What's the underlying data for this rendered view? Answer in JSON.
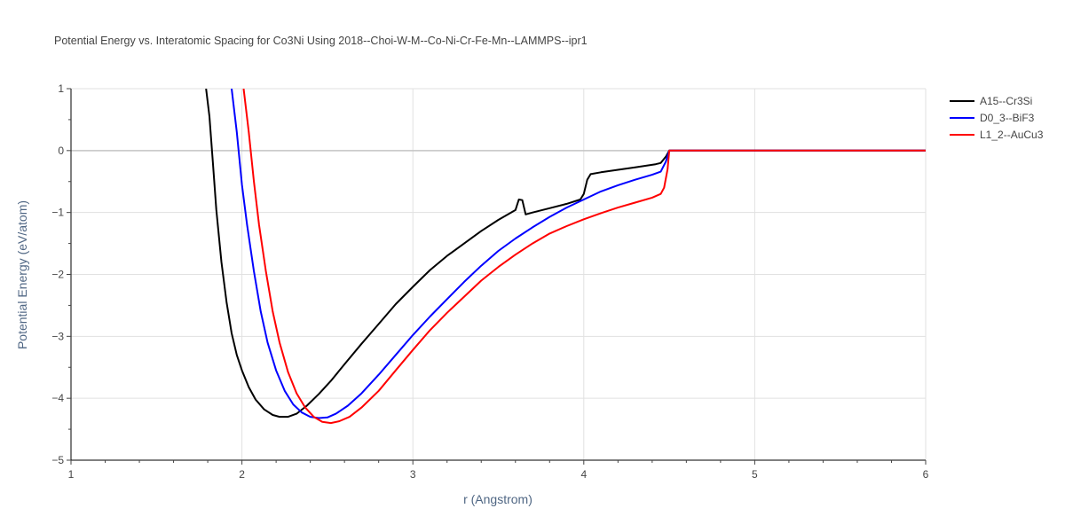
{
  "chart_data": {
    "type": "line",
    "title": "Potential Energy vs. Interatomic Spacing for Co3Ni Using 2018--Choi-W-M--Co-Ni-Cr-Fe-Mn--LAMMPS--ipr1",
    "xlabel": "r (Angstrom)",
    "ylabel": "Potential Energy (eV/atom)",
    "xlim": [
      1,
      6
    ],
    "ylim": [
      -5,
      1
    ],
    "xticks": [
      1,
      2,
      3,
      4,
      5,
      6
    ],
    "yticks": [
      1,
      0,
      -1,
      -2,
      -3,
      -4,
      -5
    ],
    "ytick_labels": [
      "1",
      "0",
      "−1",
      "−2",
      "−3",
      "−4",
      "−5"
    ],
    "grid": true,
    "legend_position": "top-right",
    "series": [
      {
        "name": "A15--Cr3Si",
        "color": "#000000",
        "points": [
          [
            1.79,
            1.0
          ],
          [
            1.81,
            0.55
          ],
          [
            1.83,
            -0.2
          ],
          [
            1.85,
            -0.95
          ],
          [
            1.88,
            -1.8
          ],
          [
            1.91,
            -2.45
          ],
          [
            1.94,
            -2.95
          ],
          [
            1.97,
            -3.3
          ],
          [
            2.0,
            -3.55
          ],
          [
            2.04,
            -3.82
          ],
          [
            2.08,
            -4.02
          ],
          [
            2.13,
            -4.18
          ],
          [
            2.18,
            -4.27
          ],
          [
            2.22,
            -4.3
          ],
          [
            2.27,
            -4.3
          ],
          [
            2.32,
            -4.25
          ],
          [
            2.38,
            -4.12
          ],
          [
            2.45,
            -3.93
          ],
          [
            2.52,
            -3.72
          ],
          [
            2.6,
            -3.45
          ],
          [
            2.7,
            -3.12
          ],
          [
            2.8,
            -2.8
          ],
          [
            2.9,
            -2.48
          ],
          [
            3.0,
            -2.2
          ],
          [
            3.1,
            -1.93
          ],
          [
            3.2,
            -1.7
          ],
          [
            3.3,
            -1.5
          ],
          [
            3.4,
            -1.3
          ],
          [
            3.5,
            -1.12
          ],
          [
            3.6,
            -0.96
          ],
          [
            3.62,
            -0.79
          ],
          [
            3.64,
            -0.8
          ],
          [
            3.66,
            -1.03
          ],
          [
            3.7,
            -1.0
          ],
          [
            3.8,
            -0.93
          ],
          [
            3.9,
            -0.86
          ],
          [
            3.98,
            -0.79
          ],
          [
            4.0,
            -0.7
          ],
          [
            4.02,
            -0.47
          ],
          [
            4.04,
            -0.38
          ],
          [
            4.1,
            -0.35
          ],
          [
            4.2,
            -0.31
          ],
          [
            4.3,
            -0.27
          ],
          [
            4.42,
            -0.22
          ],
          [
            4.45,
            -0.2
          ],
          [
            4.48,
            -0.1
          ],
          [
            4.5,
            0.0
          ],
          [
            6.0,
            0.0
          ]
        ]
      },
      {
        "name": "D0_3--BiF3",
        "color": "#0000ff",
        "points": [
          [
            1.94,
            1.0
          ],
          [
            1.97,
            0.3
          ],
          [
            2.0,
            -0.55
          ],
          [
            2.03,
            -1.2
          ],
          [
            2.07,
            -1.95
          ],
          [
            2.11,
            -2.6
          ],
          [
            2.15,
            -3.1
          ],
          [
            2.2,
            -3.55
          ],
          [
            2.25,
            -3.88
          ],
          [
            2.3,
            -4.1
          ],
          [
            2.35,
            -4.23
          ],
          [
            2.4,
            -4.3
          ],
          [
            2.45,
            -4.32
          ],
          [
            2.5,
            -4.31
          ],
          [
            2.55,
            -4.25
          ],
          [
            2.62,
            -4.12
          ],
          [
            2.7,
            -3.92
          ],
          [
            2.8,
            -3.62
          ],
          [
            2.9,
            -3.3
          ],
          [
            3.0,
            -2.98
          ],
          [
            3.1,
            -2.68
          ],
          [
            3.2,
            -2.4
          ],
          [
            3.3,
            -2.12
          ],
          [
            3.4,
            -1.86
          ],
          [
            3.5,
            -1.62
          ],
          [
            3.6,
            -1.42
          ],
          [
            3.7,
            -1.24
          ],
          [
            3.8,
            -1.07
          ],
          [
            3.9,
            -0.92
          ],
          [
            4.0,
            -0.79
          ],
          [
            4.1,
            -0.66
          ],
          [
            4.2,
            -0.56
          ],
          [
            4.3,
            -0.47
          ],
          [
            4.4,
            -0.39
          ],
          [
            4.45,
            -0.34
          ],
          [
            4.48,
            -0.18
          ],
          [
            4.5,
            0.0
          ],
          [
            6.0,
            0.0
          ]
        ]
      },
      {
        "name": "L1_2--AuCu3",
        "color": "#ff0000",
        "points": [
          [
            2.01,
            1.0
          ],
          [
            2.04,
            0.3
          ],
          [
            2.07,
            -0.5
          ],
          [
            2.1,
            -1.2
          ],
          [
            2.14,
            -1.95
          ],
          [
            2.18,
            -2.6
          ],
          [
            2.22,
            -3.1
          ],
          [
            2.27,
            -3.58
          ],
          [
            2.32,
            -3.92
          ],
          [
            2.37,
            -4.15
          ],
          [
            2.42,
            -4.3
          ],
          [
            2.47,
            -4.38
          ],
          [
            2.52,
            -4.4
          ],
          [
            2.57,
            -4.37
          ],
          [
            2.63,
            -4.3
          ],
          [
            2.7,
            -4.15
          ],
          [
            2.8,
            -3.88
          ],
          [
            2.9,
            -3.55
          ],
          [
            3.0,
            -3.22
          ],
          [
            3.1,
            -2.9
          ],
          [
            3.2,
            -2.62
          ],
          [
            3.3,
            -2.36
          ],
          [
            3.4,
            -2.1
          ],
          [
            3.5,
            -1.88
          ],
          [
            3.6,
            -1.68
          ],
          [
            3.7,
            -1.5
          ],
          [
            3.8,
            -1.34
          ],
          [
            3.9,
            -1.22
          ],
          [
            4.0,
            -1.11
          ],
          [
            4.1,
            -1.01
          ],
          [
            4.2,
            -0.92
          ],
          [
            4.3,
            -0.84
          ],
          [
            4.4,
            -0.76
          ],
          [
            4.45,
            -0.7
          ],
          [
            4.47,
            -0.6
          ],
          [
            4.49,
            -0.3
          ],
          [
            4.5,
            0.0
          ],
          [
            6.0,
            0.0
          ]
        ]
      }
    ]
  }
}
